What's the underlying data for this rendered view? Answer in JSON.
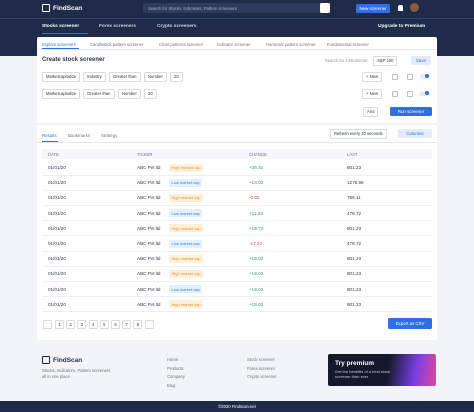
{
  "header": {
    "logo": "FindScan",
    "search_placeholder": "Search for Stocks, Indicators, Pattern screeners",
    "new_screener": "New screener"
  },
  "nav": {
    "items": [
      "Stocks screener",
      "Forex screeners",
      "Crypto screeners"
    ],
    "upgrade": "Upgrade to Premium"
  },
  "screener_tabs": [
    "Explore screeners",
    "Candlestick pattern screener",
    "Chart patterns screener",
    "Indicator screener",
    "Harmonic pattern screener",
    "Fundamental screener"
  ],
  "create": {
    "title": "Create stock screener",
    "search_label": "Search for instruments:",
    "instrument": "S&P 100",
    "save": "Save"
  },
  "filters": [
    [
      "Marketcapitalize",
      "Industry",
      "Greater than",
      "Number",
      "20"
    ],
    [
      "Marketcapitalize",
      "Greater than",
      "Number",
      "20"
    ]
  ],
  "new_button": "+ New",
  "logic": "And",
  "run": "Run screener",
  "results": {
    "tabs": [
      "Results",
      "Bookmarks",
      "Strategy"
    ],
    "refresh": "Refresh every 10 seconds",
    "columns_button": "Columns",
    "table": {
      "headers": [
        "DATE",
        "TICKER",
        "CHANGE",
        "LAST"
      ],
      "rows": [
        [
          "01/01/20",
          "ABC Pvt ltd",
          "High market cap",
          "+26.31",
          "801.23"
        ],
        [
          "01/01/20",
          "ABC Pvt ltd",
          "Low market cap",
          "+19.02",
          "1278.99"
        ],
        [
          "01/01/20",
          "ABC Pvt ltd",
          "High market cap",
          "-0.02",
          "765.11"
        ],
        [
          "01/01/20",
          "ABC Pvt ltd",
          "Low market cap",
          "+11.33",
          "478.72"
        ],
        [
          "01/01/20",
          "ABC Pvt ltd",
          "High market cap",
          "+19.73",
          "801.23"
        ],
        [
          "01/01/20",
          "ABC Pvt ltd",
          "Low market cap",
          "-17.22",
          "478.72"
        ],
        [
          "01/01/20",
          "ABC Pvt ltd",
          "High market cap",
          "+19.02",
          "801.23"
        ],
        [
          "01/01/20",
          "ABC Pvt ltd",
          "High market cap",
          "+19.02",
          "801.23"
        ],
        [
          "01/01/20",
          "ABC Pvt ltd",
          "Low market cap",
          "+19.02",
          "801.23"
        ],
        [
          "01/01/20",
          "ABC Pvt ltd",
          "High market cap",
          "+19.02",
          "801.23"
        ]
      ]
    }
  },
  "pagination": [
    "1",
    "2",
    "3",
    "4",
    "5",
    "6",
    "7",
    "8"
  ],
  "export": "Export as CSV",
  "footer": {
    "logo": "FindScan",
    "tagline": "Stocks, Indicators, Pattern screeners all in one place",
    "links": [
      [
        "Home",
        "Products",
        "Company",
        "Blog"
      ],
      [
        "Stock screener",
        "Forex screener",
        "Crypto screener"
      ]
    ],
    "premium": {
      "title": "Try premium",
      "text": "Get the benefits of a best stock screener than ever"
    },
    "copyright": "©2020 Findscan.net"
  }
}
